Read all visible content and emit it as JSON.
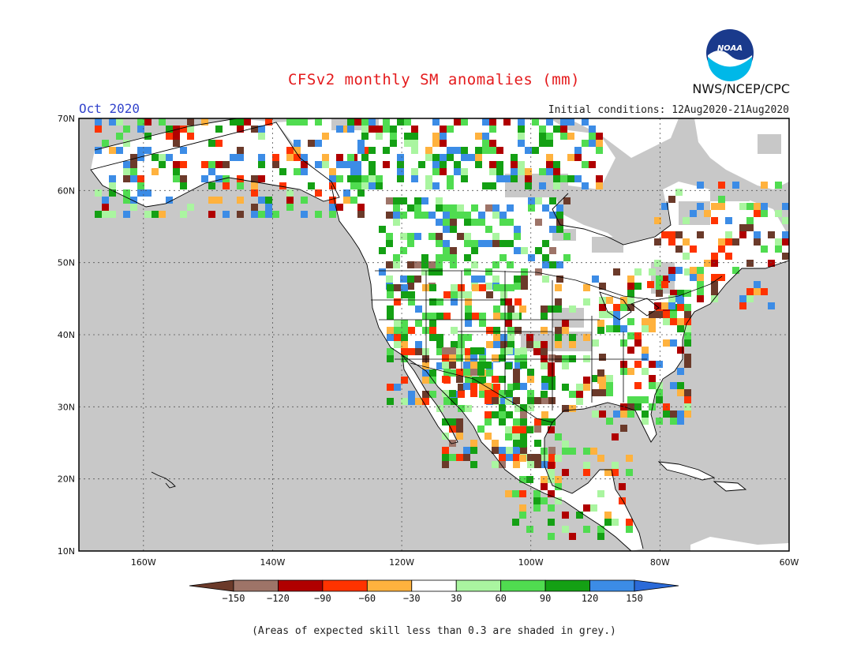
{
  "header": {
    "title": "CFSv2 monthly SM anomalies (mm)",
    "month": "Oct 2020",
    "initial_conditions": "Initial conditions: 12Aug2020-21Aug2020",
    "organization": "NWS/NCEP/CPC",
    "logo_text": "NOAA"
  },
  "map": {
    "projection": "lat-lon",
    "lon_range": [
      "170W",
      "60W"
    ],
    "lat_range": [
      "10N",
      "70N"
    ],
    "lat_labels": [
      "70N",
      "60N",
      "50N",
      "40N",
      "30N",
      "20N",
      "10N"
    ],
    "lon_labels": [
      "160W",
      "140W",
      "120W",
      "100W",
      "80W",
      "60W"
    ],
    "background_color": "#c8c8c8",
    "land_color": "#ffffff"
  },
  "colorbar": {
    "tick_labels": [
      "-150",
      "-120",
      "-90",
      "-60",
      "-30",
      "30",
      "60",
      "90",
      "120",
      "150"
    ],
    "bins": [
      {
        "color": "#6b3a2a"
      },
      {
        "color": "#9e7468"
      },
      {
        "color": "#b00000"
      },
      {
        "color": "#ff3300"
      },
      {
        "color": "#ffb23e"
      },
      {
        "color": "#ffffff"
      },
      {
        "color": "#aaf5a0"
      },
      {
        "color": "#50dc50"
      },
      {
        "color": "#14a014"
      },
      {
        "color": "#3c8ce6"
      },
      {
        "color": "#2b6ad8"
      }
    ]
  },
  "footnote": "(Areas of expected skill less than 0.3 are shaded in grey.)"
}
